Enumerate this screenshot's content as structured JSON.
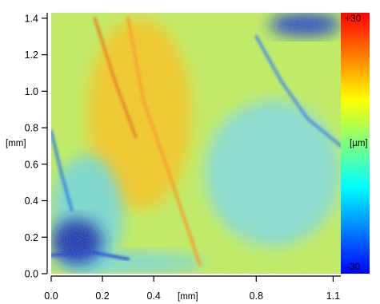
{
  "chart_data": {
    "type": "heatmap",
    "title": "",
    "xlabel": "[mm]",
    "ylabel": "[mm]",
    "xlim": [
      0.0,
      1.13
    ],
    "ylim": [
      0.0,
      1.43
    ],
    "x_ticks": [
      {
        "value": 0.0,
        "label": "0.0"
      },
      {
        "value": 0.2,
        "label": "0.2"
      },
      {
        "value": 0.4,
        "label": "0.4"
      },
      {
        "value": 0.8,
        "label": "0.8"
      },
      {
        "value": 1.1,
        "label": "1.1"
      }
    ],
    "y_ticks": [
      {
        "value": 0.0,
        "label": "0.0"
      },
      {
        "value": 0.2,
        "label": "0.2"
      },
      {
        "value": 0.4,
        "label": "0.4"
      },
      {
        "value": 0.6,
        "label": "0.6"
      },
      {
        "value": 0.8,
        "label": "0.8"
      },
      {
        "value": 1.0,
        "label": "1.0"
      },
      {
        "value": 1.2,
        "label": "1.2"
      },
      {
        "value": 1.4,
        "label": "1.4"
      }
    ],
    "colorbar": {
      "unit": "[µm]",
      "max_label": "+30",
      "min_label": "-30",
      "range": [
        -30,
        30
      ],
      "colors": [
        "#ff0000",
        "#ff7f00",
        "#ffff00",
        "#7fff7f",
        "#00ffff",
        "#0080ff",
        "#0000ff"
      ]
    },
    "field": {
      "base_color": "#c2ee62",
      "zones": [
        {
          "feature": "warm band",
          "color": "#ffc41a",
          "x": [
            0.14,
            0.55
          ],
          "y": [
            0.35,
            1.4
          ]
        },
        {
          "feature": "cool area",
          "color": "#6ad6ea",
          "x": [
            0.0,
            0.28
          ],
          "y": [
            0.0,
            0.65
          ]
        },
        {
          "feature": "cool area",
          "color": "#7fdcec",
          "x": [
            0.6,
            1.13
          ],
          "y": [
            0.15,
            0.95
          ]
        },
        {
          "feature": "cool area",
          "color": "#75d8ea",
          "x": [
            0.0,
            0.6
          ],
          "y": [
            0.0,
            0.12
          ]
        },
        {
          "feature": "deep cool edge",
          "color": "#0f2fd8",
          "x": [
            0.85,
            1.13
          ],
          "y": [
            1.3,
            1.43
          ]
        },
        {
          "feature": "deep cool crack",
          "color": "#0a1fb0",
          "x": [
            0.0,
            0.2
          ],
          "y": [
            0.05,
            0.3
          ]
        }
      ],
      "ridges": [
        {
          "color": "#f07a1c",
          "points": [
            [
              0.17,
              1.4
            ],
            [
              0.25,
              1.05
            ],
            [
              0.33,
              0.75
            ]
          ]
        },
        {
          "color": "#ff9a20",
          "points": [
            [
              0.3,
              1.4
            ],
            [
              0.36,
              0.95
            ],
            [
              0.46,
              0.55
            ],
            [
              0.58,
              0.05
            ]
          ]
        },
        {
          "color": "#2a7be8",
          "points": [
            [
              0.0,
              0.78
            ],
            [
              0.04,
              0.55
            ],
            [
              0.08,
              0.35
            ]
          ]
        },
        {
          "color": "#1a3cdc",
          "points": [
            [
              0.0,
              0.1
            ],
            [
              0.15,
              0.12
            ],
            [
              0.3,
              0.08
            ]
          ]
        },
        {
          "color": "#3a86ee",
          "points": [
            [
              0.8,
              1.3
            ],
            [
              0.9,
              1.05
            ],
            [
              1.0,
              0.85
            ],
            [
              1.13,
              0.7
            ]
          ]
        }
      ]
    }
  }
}
